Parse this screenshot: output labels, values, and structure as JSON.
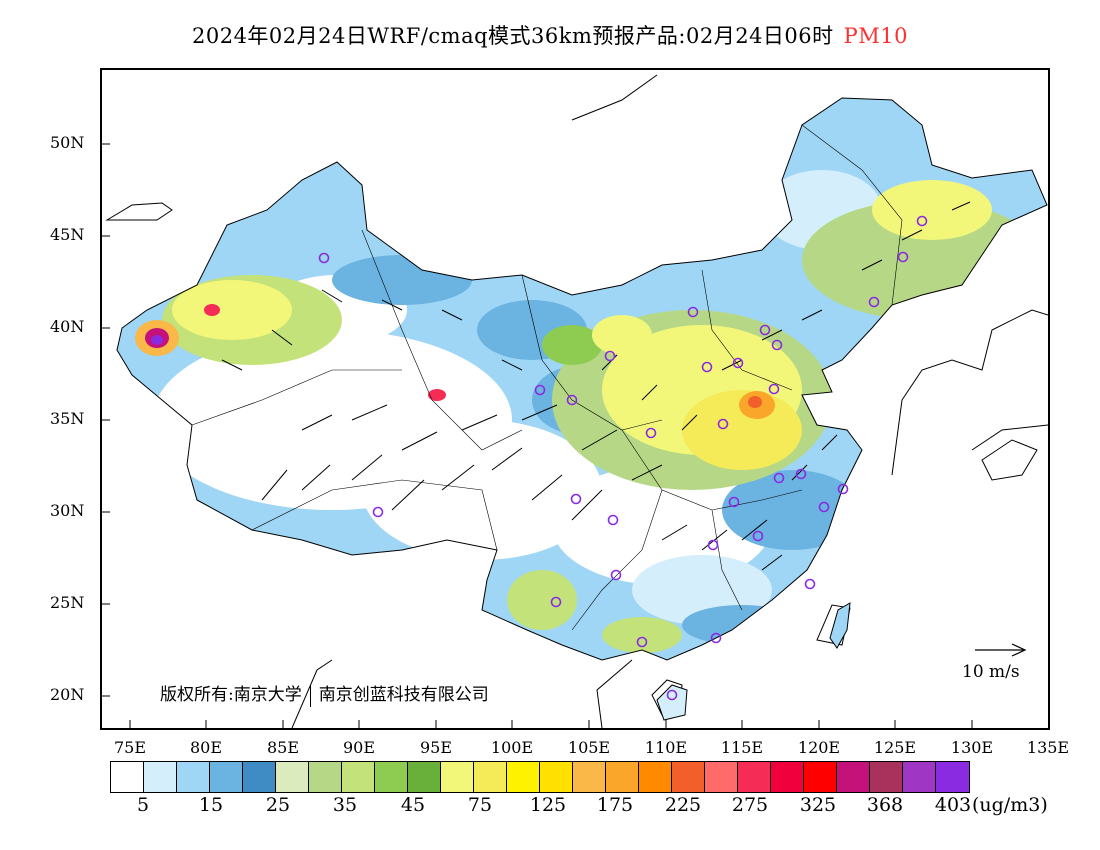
{
  "header": {
    "title": "2024年02月24日WRF/cmaq模式36km预报产品:02月24日06时",
    "pollutant": "PM10",
    "pollutant_color": "#ff3030"
  },
  "map": {
    "lat_labels": [
      "50N",
      "45N",
      "40N",
      "35N",
      "30N",
      "25N",
      "20N"
    ],
    "lon_labels": [
      "75E",
      "80E",
      "85E",
      "90E",
      "95E",
      "100E",
      "105E",
      "110E",
      "115E",
      "120E",
      "125E",
      "130E",
      "135E"
    ],
    "copyright_left": "版权所有:南京大学",
    "copyright_right": "南京创蓝科技有限公司",
    "vector_reference": "10 m/s"
  },
  "colorbar": {
    "colors": [
      "#ffffff",
      "#d4eefc",
      "#9fd6f5",
      "#6bb3e0",
      "#3f8cc4",
      "#dcebbd",
      "#b6d886",
      "#c4e27a",
      "#8dcc50",
      "#68b03a",
      "#f2f77a",
      "#f5ea57",
      "#fff200",
      "#ffe000",
      "#f9b847",
      "#f9a62b",
      "#ff8a00",
      "#f25f2a",
      "#ff6b6b",
      "#f52c55",
      "#f0003c",
      "#ff0000",
      "#c4127a",
      "#a8325c",
      "#a037c4",
      "#8a2be2"
    ],
    "tick_labels": [
      "5",
      "15",
      "25",
      "35",
      "45",
      "75",
      "125",
      "175",
      "225",
      "275",
      "325",
      "368",
      "403"
    ],
    "unit": "(ug/m3)"
  }
}
